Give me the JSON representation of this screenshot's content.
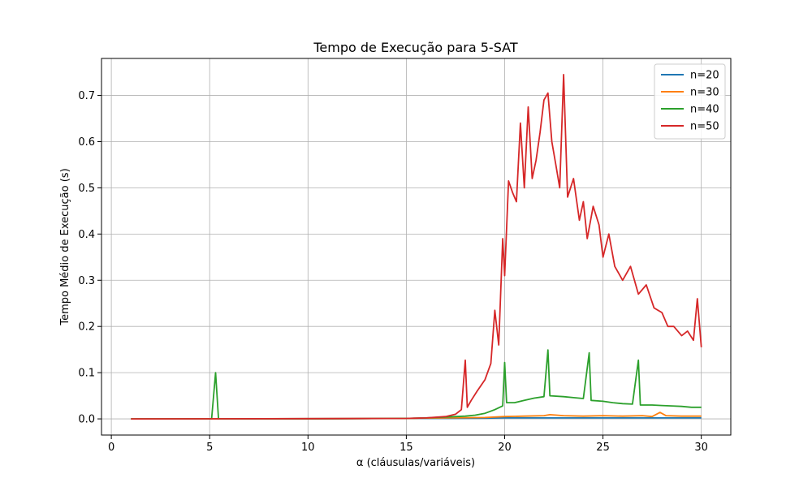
{
  "chart_data": {
    "type": "line",
    "title": "Tempo de Execução para 5-SAT",
    "xlabel": "α (cláusulas/variáveis)",
    "ylabel": "Tempo Médio de Execução (s)",
    "xlim": [
      -0.5,
      31.5
    ],
    "ylim": [
      -0.035,
      0.78
    ],
    "xticks": [
      0,
      5,
      10,
      15,
      20,
      25,
      30
    ],
    "xtick_labels": [
      "0",
      "5",
      "10",
      "15",
      "20",
      "25",
      "30"
    ],
    "yticks": [
      0.0,
      0.1,
      0.2,
      0.3,
      0.4,
      0.5,
      0.6,
      0.7
    ],
    "ytick_labels": [
      "0.0",
      "0.1",
      "0.2",
      "0.3",
      "0.4",
      "0.5",
      "0.6",
      "0.7"
    ],
    "grid": true,
    "legend_position": "top-right",
    "series": [
      {
        "name": "n=20",
        "color": "#1f77b4",
        "points": [
          [
            1.0,
            0.0
          ],
          [
            5.0,
            0.0
          ],
          [
            10.0,
            0.0005
          ],
          [
            15.0,
            0.001
          ],
          [
            17.0,
            0.001
          ],
          [
            19.0,
            0.0015
          ],
          [
            20.0,
            0.002
          ],
          [
            22.0,
            0.002
          ],
          [
            24.0,
            0.002
          ],
          [
            26.0,
            0.002
          ],
          [
            28.0,
            0.002
          ],
          [
            30.0,
            0.002
          ]
        ]
      },
      {
        "name": "n=30",
        "color": "#ff7f0e",
        "points": [
          [
            1.0,
            0.0
          ],
          [
            10.0,
            0.0005
          ],
          [
            15.0,
            0.001
          ],
          [
            17.0,
            0.002
          ],
          [
            19.0,
            0.003
          ],
          [
            20.0,
            0.005
          ],
          [
            21.0,
            0.006
          ],
          [
            22.0,
            0.007
          ],
          [
            22.3,
            0.009
          ],
          [
            23.0,
            0.007
          ],
          [
            24.0,
            0.006
          ],
          [
            25.0,
            0.007
          ],
          [
            26.0,
            0.006
          ],
          [
            27.0,
            0.007
          ],
          [
            27.5,
            0.005
          ],
          [
            27.9,
            0.014
          ],
          [
            28.2,
            0.007
          ],
          [
            29.0,
            0.006
          ],
          [
            30.0,
            0.006
          ]
        ]
      },
      {
        "name": "n=40",
        "color": "#2ca02c",
        "points": [
          [
            1.0,
            0.0
          ],
          [
            5.1,
            0.0
          ],
          [
            5.3,
            0.1
          ],
          [
            5.45,
            0.0
          ],
          [
            10.0,
            0.0
          ],
          [
            15.0,
            0.001
          ],
          [
            16.0,
            0.002
          ],
          [
            17.0,
            0.004
          ],
          [
            18.0,
            0.006
          ],
          [
            18.5,
            0.008
          ],
          [
            19.0,
            0.012
          ],
          [
            19.5,
            0.02
          ],
          [
            19.9,
            0.028
          ],
          [
            20.0,
            0.122
          ],
          [
            20.1,
            0.035
          ],
          [
            20.5,
            0.035
          ],
          [
            21.0,
            0.04
          ],
          [
            21.5,
            0.045
          ],
          [
            22.0,
            0.048
          ],
          [
            22.2,
            0.149
          ],
          [
            22.3,
            0.05
          ],
          [
            23.0,
            0.048
          ],
          [
            23.5,
            0.046
          ],
          [
            24.0,
            0.044
          ],
          [
            24.3,
            0.143
          ],
          [
            24.4,
            0.04
          ],
          [
            25.0,
            0.038
          ],
          [
            25.5,
            0.035
          ],
          [
            26.0,
            0.033
          ],
          [
            26.5,
            0.032
          ],
          [
            26.8,
            0.127
          ],
          [
            26.9,
            0.03
          ],
          [
            27.5,
            0.03
          ],
          [
            28.0,
            0.029
          ],
          [
            28.5,
            0.028
          ],
          [
            29.0,
            0.027
          ],
          [
            29.5,
            0.025
          ],
          [
            30.0,
            0.025
          ]
        ]
      },
      {
        "name": "n=50",
        "color": "#d62728",
        "points": [
          [
            1.0,
            0.0
          ],
          [
            10.0,
            0.0005
          ],
          [
            15.0,
            0.001
          ],
          [
            16.0,
            0.002
          ],
          [
            17.0,
            0.005
          ],
          [
            17.5,
            0.01
          ],
          [
            17.8,
            0.02
          ],
          [
            18.0,
            0.127
          ],
          [
            18.1,
            0.025
          ],
          [
            18.3,
            0.04
          ],
          [
            18.6,
            0.06
          ],
          [
            19.0,
            0.085
          ],
          [
            19.3,
            0.12
          ],
          [
            19.5,
            0.235
          ],
          [
            19.7,
            0.16
          ],
          [
            19.9,
            0.39
          ],
          [
            20.0,
            0.31
          ],
          [
            20.2,
            0.515
          ],
          [
            20.4,
            0.49
          ],
          [
            20.6,
            0.47
          ],
          [
            20.8,
            0.64
          ],
          [
            21.0,
            0.5
          ],
          [
            21.2,
            0.675
          ],
          [
            21.4,
            0.52
          ],
          [
            21.6,
            0.56
          ],
          [
            21.8,
            0.62
          ],
          [
            22.0,
            0.69
          ],
          [
            22.2,
            0.705
          ],
          [
            22.4,
            0.6
          ],
          [
            22.6,
            0.55
          ],
          [
            22.8,
            0.5
          ],
          [
            23.0,
            0.745
          ],
          [
            23.2,
            0.48
          ],
          [
            23.5,
            0.52
          ],
          [
            23.8,
            0.43
          ],
          [
            24.0,
            0.47
          ],
          [
            24.2,
            0.39
          ],
          [
            24.5,
            0.46
          ],
          [
            24.8,
            0.42
          ],
          [
            25.0,
            0.35
          ],
          [
            25.3,
            0.4
          ],
          [
            25.6,
            0.33
          ],
          [
            26.0,
            0.3
          ],
          [
            26.4,
            0.33
          ],
          [
            26.8,
            0.27
          ],
          [
            27.2,
            0.29
          ],
          [
            27.6,
            0.24
          ],
          [
            28.0,
            0.23
          ],
          [
            28.3,
            0.2
          ],
          [
            28.6,
            0.2
          ],
          [
            29.0,
            0.18
          ],
          [
            29.3,
            0.19
          ],
          [
            29.6,
            0.17
          ],
          [
            29.8,
            0.26
          ],
          [
            30.0,
            0.155
          ]
        ]
      }
    ]
  }
}
